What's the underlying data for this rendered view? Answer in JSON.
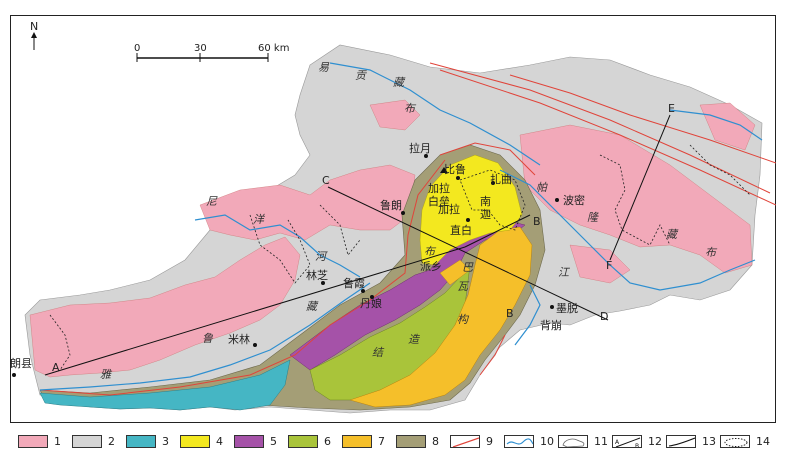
{
  "north": "N",
  "scale": {
    "ticks": [
      "0",
      "30",
      "60 km"
    ]
  },
  "colors": {
    "granite": "#f2a9b9",
    "grey_unit": "#d5d5d5",
    "cyan_unit": "#45b6c4",
    "yellow_unit": "#f3e81f",
    "magenta_unit": "#a552a8",
    "green_unit": "#a9c43a",
    "orange_unit": "#f5bf2a",
    "olive_unit": "#a49e76",
    "fault_red": "#e0443a",
    "river_blue": "#2f8fd0"
  },
  "places": {
    "langxian": "朗县",
    "milin": "米林",
    "linzhi": "林芝",
    "luxia": "鲁霞",
    "lulang": "鲁朗",
    "layue": "拉月",
    "bilu": "比鲁",
    "jialabaileng": "加拉\n白垒",
    "jiala": "加拉",
    "nanjiabawa": "南\n迦",
    "zhiba": "直白",
    "paixiang": "派乡",
    "danniang": "丹娘",
    "zhaqu": "扎曲",
    "bomi": "波密",
    "motuo": "墨脱",
    "beibeng": "背崩"
  },
  "regions": {
    "yigong": [
      "易",
      "贡",
      "藏",
      "布"
    ],
    "niyang": [
      "尼",
      "洋",
      "河"
    ],
    "parlung": [
      "帕",
      "隆",
      "藏",
      "布"
    ],
    "yarlung": [
      "雅",
      "鲁",
      "藏",
      "布",
      "江"
    ],
    "namcha": [
      "巴",
      "瓦",
      "构",
      "造",
      "结"
    ]
  },
  "profiles": {
    "A": "A",
    "B": "B",
    "C": "C",
    "D": "D",
    "E": "E",
    "F": "F"
  },
  "legend": {
    "items": [
      "1",
      "2",
      "3",
      "4",
      "5",
      "6",
      "7",
      "8",
      "9",
      "10",
      "11",
      "12",
      "13",
      "14"
    ],
    "line_a": "A",
    "line_b": "B"
  }
}
